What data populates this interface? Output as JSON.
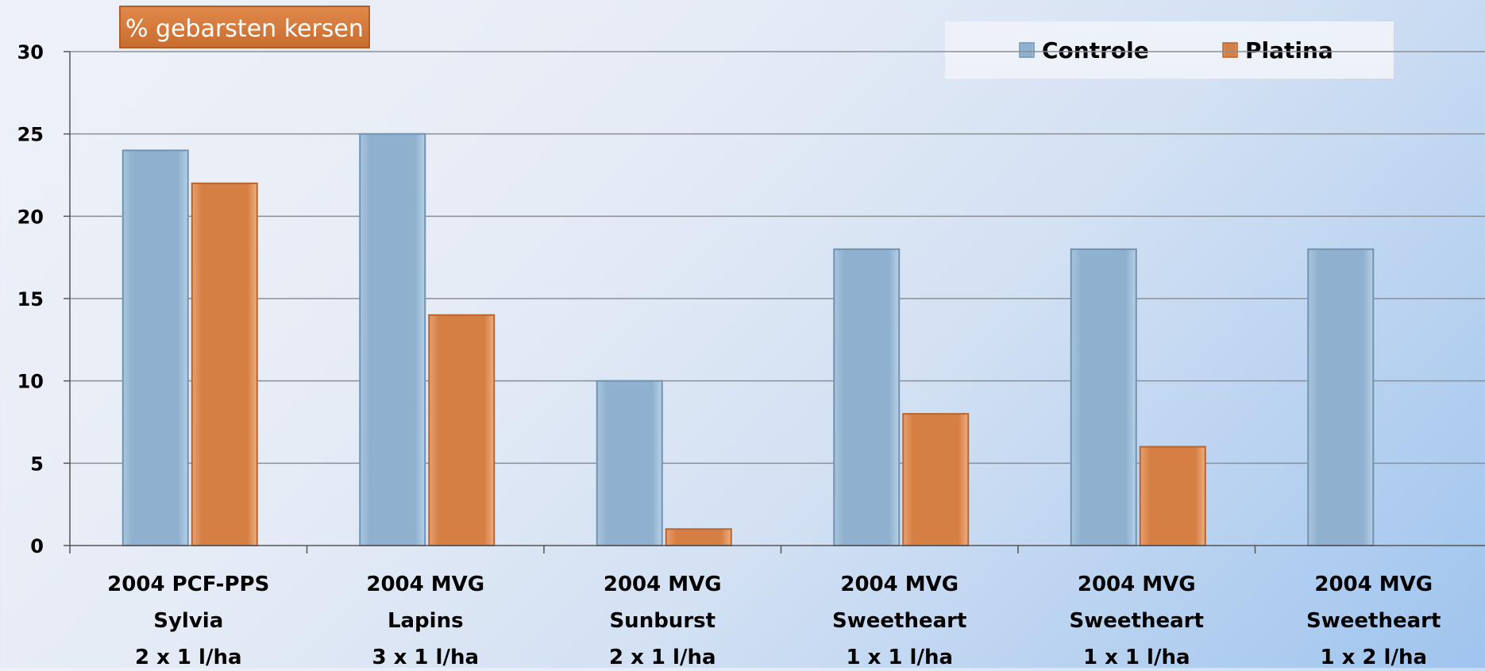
{
  "chart_data": {
    "type": "bar",
    "title": "% gebarsten kersen",
    "xlabel": "",
    "ylabel": "",
    "ylim": [
      0,
      30
    ],
    "yticks": [
      0,
      5,
      10,
      15,
      20,
      25,
      30
    ],
    "grid": true,
    "legend_position": "top-right",
    "categories": [
      [
        "2004 PCF-PPS",
        "Sylvia",
        "2 x 1 l/ha"
      ],
      [
        "2004 MVG",
        "Lapins",
        "3 x 1 l/ha"
      ],
      [
        "2004 MVG",
        "Sunburst",
        "2 x 1 l/ha"
      ],
      [
        "2004 MVG",
        "Sweetheart",
        "1 x 1 l/ha"
      ],
      [
        "2004 MVG",
        "Sweetheart",
        "1 x 1 l/ha"
      ],
      [
        "2004 MVG",
        "Sweetheart",
        "1 x 2 l/ha"
      ]
    ],
    "series": [
      {
        "name": "Controle",
        "color": "#8fb1cf",
        "values": [
          24,
          25,
          10,
          18,
          18,
          18
        ]
      },
      {
        "name": "Platina",
        "color": "#d67f45",
        "values": [
          22,
          14,
          1,
          8,
          6,
          0
        ]
      }
    ]
  }
}
